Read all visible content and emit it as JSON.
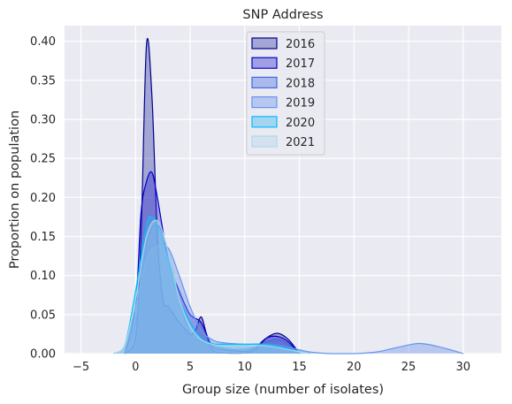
{
  "chart_data": {
    "type": "area",
    "title": "SNP Address",
    "xlabel": "Group size (number of isolates)",
    "ylabel": "Proportion on population",
    "xlim": [
      -6.5,
      33.5
    ],
    "ylim": [
      0,
      0.42
    ],
    "xticks": [
      -5,
      0,
      5,
      10,
      15,
      20,
      25,
      30
    ],
    "yticks": [
      0.0,
      0.05,
      0.1,
      0.15,
      0.2,
      0.25,
      0.3,
      0.35,
      0.4
    ],
    "xtick_labels": [
      "−5",
      "0",
      "5",
      "10",
      "15",
      "20",
      "25",
      "30"
    ],
    "ytick_labels": [
      "0.00",
      "0.05",
      "0.10",
      "0.15",
      "0.20",
      "0.25",
      "0.30",
      "0.35",
      "0.40"
    ],
    "grid": true,
    "legend_position": "top-center",
    "series": [
      {
        "name": "2016",
        "color": "#00008b",
        "fill": "#3a3fa6",
        "x": [
          -1,
          0,
          0.5,
          1,
          1.5,
          2,
          2.5,
          3,
          4,
          5,
          5.5,
          6,
          6.5,
          7,
          8,
          10,
          11,
          12,
          13,
          14,
          15
        ],
        "y": [
          0,
          0.02,
          0.15,
          0.395,
          0.33,
          0.15,
          0.07,
          0.06,
          0.04,
          0.025,
          0.03,
          0.047,
          0.025,
          0.005,
          0.001,
          0.001,
          0.005,
          0.02,
          0.026,
          0.018,
          0
        ]
      },
      {
        "name": "2017",
        "color": "#0000cd",
        "fill": "#2f2fd0",
        "x": [
          -1,
          0,
          0.5,
          1,
          1.5,
          2,
          3,
          4,
          5,
          6,
          7,
          8,
          10,
          11,
          12,
          13,
          14,
          15
        ],
        "y": [
          0,
          0.06,
          0.18,
          0.22,
          0.232,
          0.2,
          0.12,
          0.08,
          0.05,
          0.04,
          0.01,
          0.005,
          0.003,
          0.008,
          0.02,
          0.022,
          0.015,
          0
        ]
      },
      {
        "name": "2018",
        "color": "#4169e1",
        "fill": "#4d6fe0",
        "x": [
          -1,
          0,
          1,
          2,
          3,
          4,
          5,
          6,
          7,
          9,
          11,
          12,
          13,
          14,
          15
        ],
        "y": [
          0,
          0.04,
          0.14,
          0.165,
          0.13,
          0.07,
          0.025,
          0.015,
          0.01,
          0.005,
          0.008,
          0.015,
          0.018,
          0.012,
          0
        ]
      },
      {
        "name": "2019",
        "color": "#6495ed",
        "fill": "#6f94ea",
        "x": [
          -2,
          -1,
          0,
          1,
          2,
          3,
          4,
          5,
          6,
          7,
          8,
          10,
          12,
          14,
          16,
          18,
          20,
          22,
          24,
          26,
          28,
          30
        ],
        "y": [
          0,
          0.01,
          0.06,
          0.12,
          0.138,
          0.135,
          0.1,
          0.06,
          0.03,
          0.018,
          0.014,
          0.012,
          0.012,
          0.008,
          0.002,
          0,
          0,
          0.002,
          0.008,
          0.013,
          0.008,
          0
        ]
      },
      {
        "name": "2020",
        "color": "#00bfff",
        "fill": "#39b7f0",
        "x": [
          -2,
          -1,
          0,
          1,
          1.5,
          2,
          3,
          4,
          5,
          6,
          7,
          8,
          10,
          12,
          14,
          16
        ],
        "y": [
          0,
          0.01,
          0.08,
          0.165,
          0.175,
          0.165,
          0.12,
          0.07,
          0.04,
          0.02,
          0.013,
          0.012,
          0.012,
          0.012,
          0.006,
          0
        ]
      },
      {
        "name": "2021",
        "color": "#add8e6",
        "fill": "#b4d8ea",
        "x": [
          -2,
          -1,
          0,
          1,
          2,
          3,
          4,
          5,
          6,
          7,
          8,
          10,
          12,
          14,
          16
        ],
        "y": [
          0,
          0.01,
          0.07,
          0.15,
          0.17,
          0.13,
          0.07,
          0.035,
          0.018,
          0.012,
          0.01,
          0.01,
          0.01,
          0.005,
          0
        ]
      }
    ]
  }
}
